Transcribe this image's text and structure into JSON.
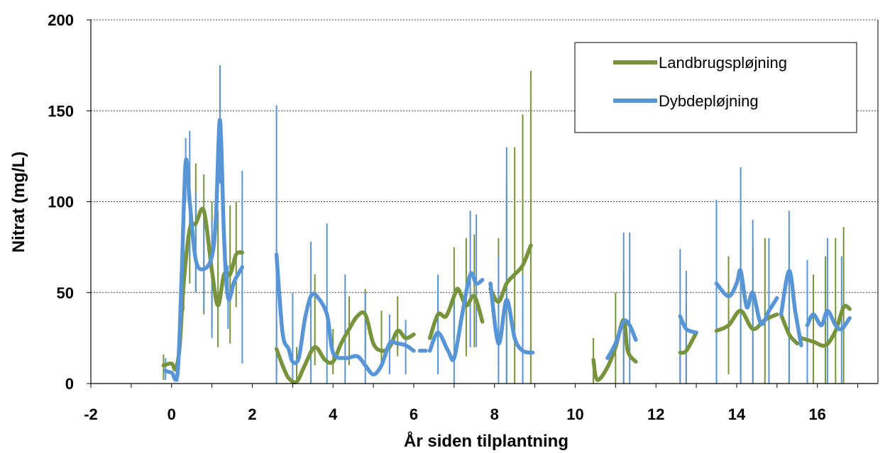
{
  "chart_data": {
    "type": "line",
    "title": "",
    "xlabel": "År siden tilplantning",
    "ylabel": "Nitrat (mg/L)",
    "xlim": [
      -2,
      17.5
    ],
    "ylim": [
      0,
      200
    ],
    "xticks": [
      -2,
      0,
      2,
      4,
      6,
      8,
      10,
      12,
      14,
      16
    ],
    "yticks": [
      0,
      50,
      100,
      150,
      200
    ],
    "gridlines": "horizontal dotted at 50, 100, 150, 200",
    "legend_position": "top-right",
    "error_bars": true,
    "series": [
      {
        "name": "Landbrugspløjning",
        "color": "#77933C",
        "segments": [
          [
            [
              -0.2,
              10
            ],
            [
              0,
              11
            ],
            [
              0.1,
              8
            ],
            [
              0.2,
              20
            ],
            [
              0.3,
              55
            ],
            [
              0.45,
              85
            ],
            [
              0.6,
              88
            ],
            [
              0.8,
              95
            ],
            [
              1.0,
              62
            ],
            [
              1.15,
              43
            ],
            [
              1.3,
              60
            ],
            [
              1.45,
              60
            ],
            [
              1.6,
              71
            ],
            [
              1.75,
              72
            ]
          ],
          [
            [
              2.6,
              19
            ],
            [
              2.75,
              10
            ],
            [
              2.9,
              3
            ],
            [
              3.1,
              1
            ],
            [
              3.3,
              10
            ],
            [
              3.55,
              20
            ],
            [
              3.8,
              13
            ],
            [
              4.0,
              12
            ],
            [
              4.2,
              22
            ],
            [
              4.4,
              30
            ],
            [
              4.6,
              37
            ],
            [
              4.8,
              38
            ],
            [
              5.0,
              22
            ],
            [
              5.2,
              18
            ],
            [
              5.4,
              20
            ],
            [
              5.6,
              29
            ],
            [
              5.8,
              25
            ],
            [
              6.0,
              27
            ]
          ],
          [
            [
              6.4,
              25
            ],
            [
              6.6,
              38
            ],
            [
              6.8,
              37
            ],
            [
              7.0,
              48
            ],
            [
              7.1,
              52
            ],
            [
              7.3,
              43
            ],
            [
              7.5,
              48
            ],
            [
              7.7,
              34
            ]
          ],
          [
            [
              7.9,
              52
            ],
            [
              8.1,
              45
            ],
            [
              8.3,
              55
            ],
            [
              8.5,
              60
            ],
            [
              8.7,
              65
            ],
            [
              8.9,
              76
            ]
          ],
          [
            [
              10.45,
              13
            ],
            [
              10.55,
              2
            ],
            [
              10.8,
              9
            ],
            [
              11.0,
              20
            ],
            [
              11.2,
              35
            ],
            [
              11.3,
              18
            ],
            [
              11.5,
              12
            ]
          ],
          [
            [
              12.6,
              17
            ],
            [
              12.75,
              18
            ],
            [
              13.0,
              28
            ]
          ],
          [
            [
              13.5,
              29
            ],
            [
              13.8,
              32
            ],
            [
              14.1,
              40
            ],
            [
              14.4,
              30
            ],
            [
              14.7,
              35
            ],
            [
              15.0,
              38
            ]
          ],
          [
            [
              15.1,
              38
            ],
            [
              15.3,
              27
            ],
            [
              15.5,
              22
            ]
          ],
          [
            [
              15.6,
              25
            ],
            [
              15.9,
              23
            ],
            [
              16.2,
              21
            ],
            [
              16.45,
              29
            ],
            [
              16.65,
              42
            ],
            [
              16.8,
              41
            ]
          ]
        ],
        "error_bar_points": [
          {
            "x": -0.2,
            "low": 2,
            "high": 16
          },
          {
            "x": 0.3,
            "low": 40,
            "high": 110
          },
          {
            "x": 0.45,
            "low": 55,
            "high": 118
          },
          {
            "x": 0.6,
            "low": 50,
            "high": 121
          },
          {
            "x": 0.8,
            "low": 38,
            "high": 115
          },
          {
            "x": 1.0,
            "low": 30,
            "high": 100
          },
          {
            "x": 1.15,
            "low": 20,
            "high": 95
          },
          {
            "x": 1.45,
            "low": 22,
            "high": 98
          },
          {
            "x": 1.6,
            "low": 42,
            "high": 100
          },
          {
            "x": 2.6,
            "low": 5,
            "high": 35
          },
          {
            "x": 3.1,
            "low": 0,
            "high": 20
          },
          {
            "x": 3.55,
            "low": 10,
            "high": 60
          },
          {
            "x": 4.0,
            "low": 5,
            "high": 30
          },
          {
            "x": 4.4,
            "low": 10,
            "high": 48
          },
          {
            "x": 4.8,
            "low": 15,
            "high": 52
          },
          {
            "x": 5.2,
            "low": 8,
            "high": 40
          },
          {
            "x": 5.6,
            "low": 15,
            "high": 48
          },
          {
            "x": 6.6,
            "low": 20,
            "high": 55
          },
          {
            "x": 7.0,
            "low": 25,
            "high": 75
          },
          {
            "x": 7.3,
            "low": 15,
            "high": 80
          },
          {
            "x": 7.5,
            "low": 20,
            "high": 82
          },
          {
            "x": 8.1,
            "low": 10,
            "high": 80
          },
          {
            "x": 8.3,
            "low": 0,
            "high": 110
          },
          {
            "x": 8.5,
            "low": 0,
            "high": 130
          },
          {
            "x": 8.7,
            "low": 0,
            "high": 148
          },
          {
            "x": 8.9,
            "low": 0,
            "high": 172
          },
          {
            "x": 10.45,
            "low": 0,
            "high": 25
          },
          {
            "x": 11.0,
            "low": 0,
            "high": 50
          },
          {
            "x": 11.2,
            "low": 0,
            "high": 62
          },
          {
            "x": 12.6,
            "low": 0,
            "high": 38
          },
          {
            "x": 12.75,
            "low": 0,
            "high": 45
          },
          {
            "x": 13.8,
            "low": 5,
            "high": 70
          },
          {
            "x": 14.1,
            "low": 0,
            "high": 86
          },
          {
            "x": 14.4,
            "low": 0,
            "high": 75
          },
          {
            "x": 14.7,
            "low": 0,
            "high": 80
          },
          {
            "x": 15.3,
            "low": 0,
            "high": 78
          },
          {
            "x": 15.9,
            "low": 0,
            "high": 60
          },
          {
            "x": 16.2,
            "low": 0,
            "high": 70
          },
          {
            "x": 16.45,
            "low": 0,
            "high": 80
          },
          {
            "x": 16.65,
            "low": 0,
            "high": 86
          }
        ]
      },
      {
        "name": "Dybdepløjning",
        "color": "#5795D6",
        "segments": [
          [
            [
              -0.15,
              7
            ],
            [
              0,
              6
            ],
            [
              0.15,
              6
            ],
            [
              0.25,
              60
            ],
            [
              0.35,
              122
            ],
            [
              0.45,
              100
            ],
            [
              0.6,
              68
            ],
            [
              0.8,
              63
            ],
            [
              1.0,
              70
            ],
            [
              1.1,
              92
            ],
            [
              1.2,
              145
            ],
            [
              1.3,
              80
            ],
            [
              1.4,
              47
            ],
            [
              1.55,
              56
            ],
            [
              1.75,
              64
            ]
          ],
          [
            [
              2.6,
              71
            ],
            [
              2.75,
              28
            ],
            [
              2.9,
              19
            ],
            [
              3.0,
              12
            ],
            [
              3.15,
              14
            ],
            [
              3.3,
              35
            ],
            [
              3.45,
              48
            ],
            [
              3.6,
              48
            ],
            [
              3.85,
              38
            ],
            [
              4.0,
              17
            ],
            [
              4.3,
              14
            ],
            [
              4.6,
              15
            ],
            [
              4.8,
              10
            ],
            [
              5.0,
              5
            ],
            [
              5.2,
              10
            ],
            [
              5.4,
              22
            ],
            [
              5.6,
              22
            ],
            [
              5.8,
              21
            ],
            [
              6.0,
              18
            ]
          ],
          [
            [
              6.15,
              18
            ],
            [
              6.3,
              18
            ]
          ],
          [
            [
              6.4,
              18
            ],
            [
              6.6,
              28
            ],
            [
              6.85,
              18
            ],
            [
              7.0,
              14
            ],
            [
              7.2,
              38
            ],
            [
              7.4,
              60
            ],
            [
              7.55,
              55
            ],
            [
              7.7,
              57
            ]
          ],
          [
            [
              7.9,
              55
            ],
            [
              8.1,
              22
            ],
            [
              8.3,
              46
            ],
            [
              8.5,
              25
            ],
            [
              8.7,
              18
            ],
            [
              8.95,
              17
            ]
          ],
          [
            [
              10.8,
              14
            ],
            [
              11.0,
              22
            ],
            [
              11.2,
              34
            ],
            [
              11.35,
              32
            ],
            [
              11.5,
              24
            ]
          ],
          [
            [
              12.6,
              37
            ],
            [
              12.75,
              30
            ],
            [
              13.0,
              28
            ]
          ],
          [
            [
              13.5,
              55
            ],
            [
              13.8,
              48
            ],
            [
              14.0,
              55
            ],
            [
              14.1,
              62
            ],
            [
              14.25,
              42
            ],
            [
              14.4,
              50
            ],
            [
              14.6,
              33
            ],
            [
              14.8,
              40
            ],
            [
              15.0,
              47
            ]
          ],
          [
            [
              15.1,
              38
            ],
            [
              15.3,
              62
            ],
            [
              15.45,
              40
            ],
            [
              15.6,
              21
            ]
          ],
          [
            [
              15.75,
              32
            ],
            [
              15.9,
              38
            ],
            [
              16.1,
              32
            ],
            [
              16.25,
              40
            ],
            [
              16.45,
              32
            ],
            [
              16.6,
              30
            ],
            [
              16.8,
              36
            ]
          ]
        ],
        "error_bar_points": [
          {
            "x": -0.15,
            "low": 2,
            "high": 14
          },
          {
            "x": 0.15,
            "low": 1,
            "high": 12
          },
          {
            "x": 0.35,
            "low": 100,
            "high": 135
          },
          {
            "x": 0.45,
            "low": 70,
            "high": 139
          },
          {
            "x": 0.6,
            "low": 50,
            "high": 105
          },
          {
            "x": 0.8,
            "low": 40,
            "high": 95
          },
          {
            "x": 1.0,
            "low": 25,
            "high": 90
          },
          {
            "x": 1.2,
            "low": 110,
            "high": 175
          },
          {
            "x": 1.4,
            "low": 30,
            "high": 65
          },
          {
            "x": 1.75,
            "low": 11,
            "high": 117
          },
          {
            "x": 2.6,
            "low": 0,
            "high": 153
          },
          {
            "x": 3.0,
            "low": 0,
            "high": 50
          },
          {
            "x": 3.45,
            "low": 0,
            "high": 78
          },
          {
            "x": 3.85,
            "low": 0,
            "high": 88
          },
          {
            "x": 4.3,
            "low": 0,
            "high": 60
          },
          {
            "x": 4.8,
            "low": 0,
            "high": 50
          },
          {
            "x": 5.4,
            "low": 5,
            "high": 38
          },
          {
            "x": 5.8,
            "low": 5,
            "high": 35
          },
          {
            "x": 6.6,
            "low": 5,
            "high": 60
          },
          {
            "x": 7.0,
            "low": 0,
            "high": 45
          },
          {
            "x": 7.4,
            "low": 20,
            "high": 95
          },
          {
            "x": 7.55,
            "low": 20,
            "high": 93
          },
          {
            "x": 8.1,
            "low": 0,
            "high": 70
          },
          {
            "x": 8.3,
            "low": 0,
            "high": 130
          },
          {
            "x": 8.7,
            "low": 0,
            "high": 60
          },
          {
            "x": 11.2,
            "low": 0,
            "high": 83
          },
          {
            "x": 11.35,
            "low": 0,
            "high": 83
          },
          {
            "x": 12.6,
            "low": 0,
            "high": 74
          },
          {
            "x": 12.75,
            "low": 0,
            "high": 62
          },
          {
            "x": 13.5,
            "low": 0,
            "high": 101
          },
          {
            "x": 14.1,
            "low": 0,
            "high": 119
          },
          {
            "x": 14.4,
            "low": 0,
            "high": 90
          },
          {
            "x": 14.8,
            "low": 0,
            "high": 80
          },
          {
            "x": 15.3,
            "low": 0,
            "high": 95
          },
          {
            "x": 15.75,
            "low": 0,
            "high": 68
          },
          {
            "x": 16.25,
            "low": 0,
            "high": 80
          },
          {
            "x": 16.6,
            "low": 0,
            "high": 70
          }
        ]
      }
    ]
  }
}
